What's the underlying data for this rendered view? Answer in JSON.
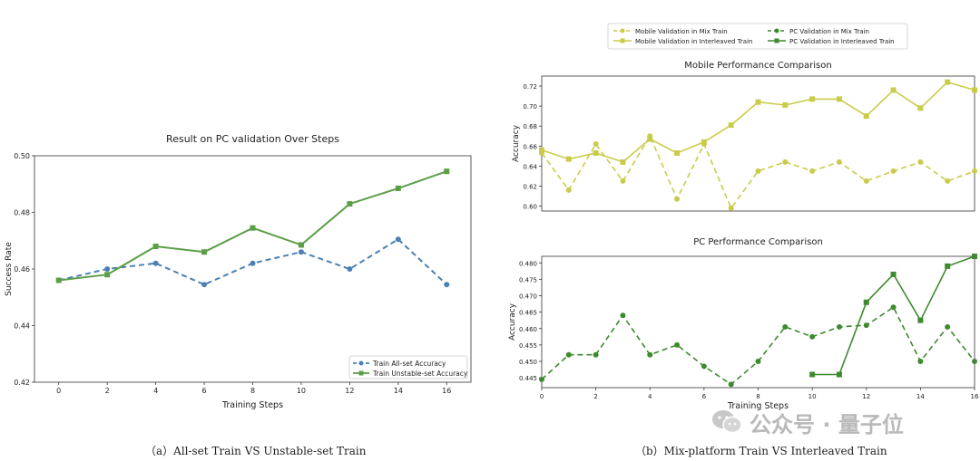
{
  "chart_data": [
    {
      "type": "line",
      "title": "Result on PC validation Over Steps",
      "xlabel": "Training Steps",
      "ylabel": "Success Rate",
      "xlim": [
        -1,
        17
      ],
      "ylim": [
        0.42,
        0.5
      ],
      "xticks": [
        "0",
        "2",
        "4",
        "6",
        "8",
        "10",
        "12",
        "14",
        "16"
      ],
      "yticks": [
        "0.42",
        "0.44",
        "0.46",
        "0.48",
        "0.50"
      ],
      "legend_position": "bottom-right",
      "series": [
        {
          "name": "Train All-set Accuracy",
          "color": "#4a80b3",
          "style": "dashed",
          "marker": "circle",
          "x": [
            0,
            2,
            4,
            6,
            8,
            10,
            12,
            14,
            16
          ],
          "values": [
            0.456,
            0.46,
            0.462,
            0.4545,
            0.462,
            0.466,
            0.46,
            0.4705,
            0.4545
          ]
        },
        {
          "name": "Train Unstable-set Accuracy",
          "color": "#5a9e47",
          "style": "solid",
          "marker": "square",
          "x": [
            0,
            2,
            4,
            6,
            8,
            10,
            12,
            14,
            16
          ],
          "values": [
            0.456,
            0.458,
            0.468,
            0.466,
            0.4745,
            0.4685,
            0.483,
            0.4885,
            0.4945
          ]
        }
      ],
      "caption": "（a）All-set Train VS Unstable-set Train"
    },
    {
      "type": "line",
      "title": "Mobile Performance Comparison",
      "xlabel": "",
      "ylabel": "Accuracy",
      "xlim": [
        0,
        16
      ],
      "ylim": [
        0.595,
        0.73
      ],
      "xticks": [],
      "yticks": [
        "0.60",
        "0.62",
        "0.64",
        "0.66",
        "0.68",
        "0.70",
        "0.72"
      ],
      "legend_position": "above",
      "series": [
        {
          "name": "Mobile Validation in Mix Train",
          "color": "#c9cc4a",
          "style": "dashed",
          "marker": "circle",
          "x": [
            0,
            1,
            2,
            3,
            4,
            5,
            6,
            7,
            8,
            9,
            10,
            11,
            12,
            13,
            14,
            15,
            16
          ],
          "values": [
            0.653,
            0.616,
            0.662,
            0.625,
            0.67,
            0.607,
            0.662,
            0.598,
            0.635,
            0.644,
            0.635,
            0.644,
            0.625,
            0.635,
            0.644,
            0.625,
            0.635
          ]
        },
        {
          "name": "Mobile Validation in Interleaved Train",
          "color": "#c9cc4a",
          "style": "solid",
          "marker": "square",
          "x": [
            0,
            1,
            2,
            3,
            4,
            5,
            6,
            7,
            8,
            9,
            10,
            11,
            12,
            13,
            14,
            15,
            16
          ],
          "values": [
            0.656,
            0.647,
            0.653,
            0.644,
            0.667,
            0.653,
            0.664,
            0.681,
            0.704,
            0.701,
            0.707,
            0.707,
            0.69,
            0.716,
            0.698,
            0.724,
            0.716
          ]
        }
      ],
      "caption": "（b）Mix-platform Train VS Interleaved Train"
    },
    {
      "type": "line",
      "title": "PC Performance Comparison",
      "xlabel": "Training Steps",
      "ylabel": "Accuracy",
      "xlim": [
        0,
        16
      ],
      "ylim": [
        0.442,
        0.482
      ],
      "xticks": [
        "0",
        "2",
        "4",
        "6",
        "8",
        "10",
        "12",
        "14",
        "16"
      ],
      "yticks": [
        "0.445",
        "0.450",
        "0.455",
        "0.460",
        "0.465",
        "0.470",
        "0.475",
        "0.480"
      ],
      "series": [
        {
          "name": "PC Validation in Mix Train",
          "color": "#3e8a2e",
          "style": "dashed",
          "marker": "circle",
          "x": [
            0,
            1,
            2,
            3,
            4,
            5,
            6,
            7,
            8,
            9,
            10,
            11,
            12,
            13,
            14,
            15,
            16
          ],
          "values": [
            0.4445,
            0.452,
            0.452,
            0.464,
            0.452,
            0.455,
            0.4485,
            0.443,
            0.45,
            0.4605,
            0.4575,
            0.4605,
            0.461,
            0.4665,
            0.45,
            0.4605,
            0.45
          ]
        },
        {
          "name": "PC Validation in Interleaved Train",
          "color": "#3e8a2e",
          "style": "solid",
          "marker": "square",
          "x": [
            10,
            11,
            12,
            13,
            14,
            15,
            16
          ],
          "values": [
            0.446,
            0.446,
            0.468,
            0.4765,
            0.4625,
            0.479,
            0.482
          ]
        }
      ]
    }
  ],
  "watermark": {
    "text": "公众号 · 量子位",
    "icon": "wechat-icon"
  }
}
